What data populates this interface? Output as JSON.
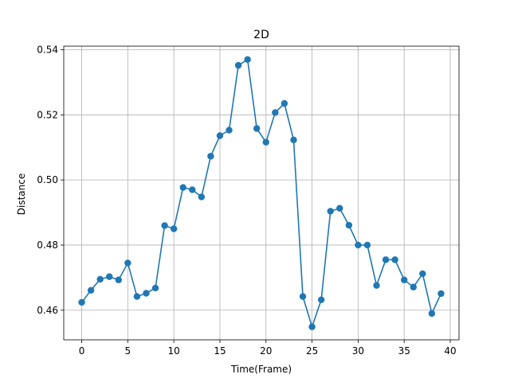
{
  "chart_data": {
    "type": "line",
    "title": "2D",
    "xlabel": "Time(Frame)",
    "ylabel": "Distance",
    "xlim": [
      -1.95,
      40.95
    ],
    "ylim": [
      0.4509,
      0.5411
    ],
    "xticks": [
      0,
      5,
      10,
      15,
      20,
      25,
      30,
      35,
      40
    ],
    "yticks": [
      0.46,
      0.48,
      0.5,
      0.52,
      0.54
    ],
    "ytick_labels": [
      "0.46",
      "0.48",
      "0.50",
      "0.52",
      "0.54"
    ],
    "grid": true,
    "line_color": "#1f77b4",
    "marker": "circle",
    "series": [
      {
        "x": [
          0,
          1,
          2,
          3,
          4,
          5,
          6,
          7,
          8,
          9,
          10,
          11,
          12,
          13,
          14,
          15,
          16,
          17,
          18,
          19,
          20,
          21,
          22,
          23,
          24,
          25,
          26,
          27,
          28,
          29,
          30,
          31,
          32,
          33,
          34,
          35,
          36,
          37,
          38,
          39
        ],
        "values": [
          0.4624,
          0.4661,
          0.4695,
          0.4703,
          0.4693,
          0.4745,
          0.4642,
          0.4652,
          0.4668,
          0.486,
          0.485,
          0.4977,
          0.497,
          0.4948,
          0.5073,
          0.5136,
          0.5153,
          0.5352,
          0.537,
          0.5158,
          0.5116,
          0.5207,
          0.5235,
          0.5123,
          0.4642,
          0.4549,
          0.4632,
          0.4904,
          0.4913,
          0.4861,
          0.48,
          0.48,
          0.4676,
          0.4755,
          0.4755,
          0.4693,
          0.4671,
          0.4712,
          0.459,
          0.4651
        ]
      }
    ]
  }
}
